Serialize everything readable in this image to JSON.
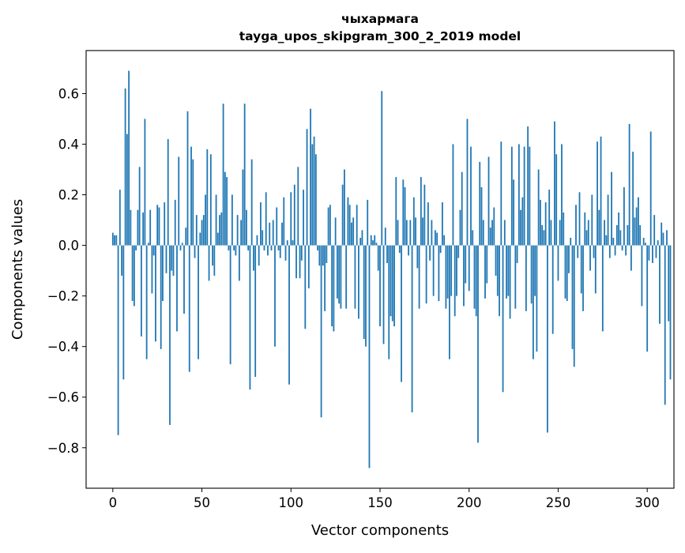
{
  "chart_data": {
    "type": "bar",
    "title": "чыхармага",
    "subtitle": "tayga_upos_skipgram_300_2_2019 model",
    "xlabel": "Vector components",
    "ylabel": "Components values",
    "xlim": [
      -15,
      315
    ],
    "ylim": [
      -0.96,
      0.77
    ],
    "xticks": [
      0,
      50,
      100,
      150,
      200,
      250,
      300
    ],
    "xtick_labels": [
      "0",
      "50",
      "100",
      "150",
      "200",
      "250",
      "300"
    ],
    "yticks": [
      -0.8,
      -0.6,
      -0.4,
      -0.2,
      0.0,
      0.2,
      0.4,
      0.6
    ],
    "ytick_labels": [
      "−0.8",
      "−0.6",
      "−0.4",
      "−0.2",
      "0.0",
      "0.2",
      "0.4",
      "0.6"
    ],
    "bar_color": "#1f77b4",
    "grid": false,
    "series": [
      {
        "name": "components",
        "x_start": 0,
        "values": [
          0.05,
          0.04,
          0.04,
          -0.75,
          0.22,
          -0.12,
          -0.53,
          0.62,
          0.44,
          0.69,
          0.14,
          -0.22,
          -0.24,
          -0.02,
          0.14,
          0.31,
          -0.36,
          0.13,
          0.5,
          -0.45,
          0.01,
          0.14,
          -0.19,
          -0.04,
          -0.38,
          0.16,
          0.15,
          -0.41,
          -0.22,
          0.17,
          -0.11,
          0.42,
          -0.71,
          -0.1,
          -0.12,
          0.18,
          -0.34,
          0.35,
          -0.02,
          0.01,
          -0.27,
          0.07,
          0.53,
          -0.5,
          0.39,
          0.34,
          -0.05,
          0.12,
          -0.45,
          0.05,
          0.1,
          0.12,
          0.2,
          0.38,
          -0.14,
          0.36,
          -0.08,
          -0.12,
          0.2,
          0.05,
          0.12,
          0.13,
          0.56,
          0.29,
          0.27,
          -0.02,
          -0.47,
          0.2,
          -0.02,
          -0.04,
          0.12,
          -0.14,
          0.1,
          0.3,
          0.56,
          0.14,
          -0.02,
          -0.57,
          0.34,
          -0.1,
          -0.52,
          0.04,
          -0.08,
          0.17,
          0.06,
          -0.02,
          0.21,
          -0.04,
          0.09,
          -0.02,
          0.1,
          -0.4,
          0.15,
          -0.02,
          -0.05,
          0.09,
          0.19,
          -0.06,
          0.02,
          -0.55,
          0.21,
          0.02,
          0.24,
          -0.13,
          0.31,
          -0.13,
          -0.06,
          0.22,
          -0.33,
          0.46,
          -0.17,
          0.54,
          0.4,
          0.43,
          0.36,
          -0.02,
          -0.08,
          -0.68,
          -0.08,
          -0.26,
          -0.07,
          0.15,
          0.16,
          -0.32,
          -0.34,
          0.11,
          -0.21,
          -0.23,
          -0.25,
          0.24,
          0.3,
          -0.25,
          0.19,
          0.16,
          0.09,
          0.11,
          -0.25,
          0.16,
          -0.29,
          0.03,
          0.06,
          -0.37,
          -0.4,
          0.18,
          -0.88,
          0.04,
          0.02,
          0.04,
          0.01,
          -0.1,
          -0.32,
          0.61,
          -0.39,
          0.07,
          -0.07,
          -0.45,
          -0.28,
          -0.3,
          -0.32,
          0.27,
          0.1,
          -0.03,
          -0.54,
          0.26,
          0.23,
          0.1,
          -0.04,
          0.1,
          -0.66,
          0.19,
          0.11,
          -0.09,
          -0.25,
          0.27,
          0.11,
          0.24,
          -0.23,
          0.17,
          -0.06,
          0.1,
          -0.2,
          0.06,
          0.05,
          -0.22,
          -0.03,
          0.17,
          0.04,
          -0.25,
          -0.21,
          -0.45,
          -0.2,
          0.4,
          -0.28,
          -0.2,
          -0.05,
          0.14,
          0.29,
          -0.24,
          -0.15,
          0.5,
          -0.18,
          0.39,
          0.06,
          -0.25,
          -0.28,
          -0.78,
          0.33,
          0.23,
          0.1,
          -0.21,
          -0.15,
          0.35,
          0.07,
          0.1,
          0.15,
          -0.12,
          -0.2,
          -0.28,
          0.41,
          -0.58,
          0.1,
          -0.21,
          -0.2,
          -0.29,
          0.39,
          0.26,
          -0.25,
          -0.07,
          0.4,
          0.14,
          0.19,
          0.39,
          -0.26,
          0.47,
          0.39,
          -0.23,
          -0.45,
          -0.2,
          -0.42,
          0.3,
          0.18,
          0.08,
          0.06,
          0.17,
          -0.74,
          0.22,
          0.1,
          -0.35,
          0.49,
          0.36,
          -0.14,
          0.1,
          0.4,
          0.13,
          -0.21,
          -0.22,
          -0.11,
          0.03,
          -0.41,
          -0.48,
          0.16,
          -0.05,
          0.21,
          -0.19,
          -0.26,
          0.13,
          0.06,
          0.1,
          -0.1,
          0.2,
          -0.05,
          -0.19,
          0.41,
          0.14,
          0.43,
          -0.34,
          0.1,
          0.04,
          0.2,
          -0.05,
          0.29,
          0.03,
          -0.04,
          0.08,
          0.13,
          0.06,
          -0.02,
          0.23,
          -0.04,
          0.08,
          0.48,
          -0.1,
          0.37,
          0.11,
          0.15,
          0.19,
          0.08,
          -0.24,
          0.03,
          0.01,
          -0.42,
          -0.06,
          0.45,
          -0.07,
          0.12,
          -0.05,
          0.02,
          -0.31,
          0.09,
          0.05,
          -0.63,
          0.06,
          -0.3,
          -0.53
        ]
      }
    ]
  }
}
